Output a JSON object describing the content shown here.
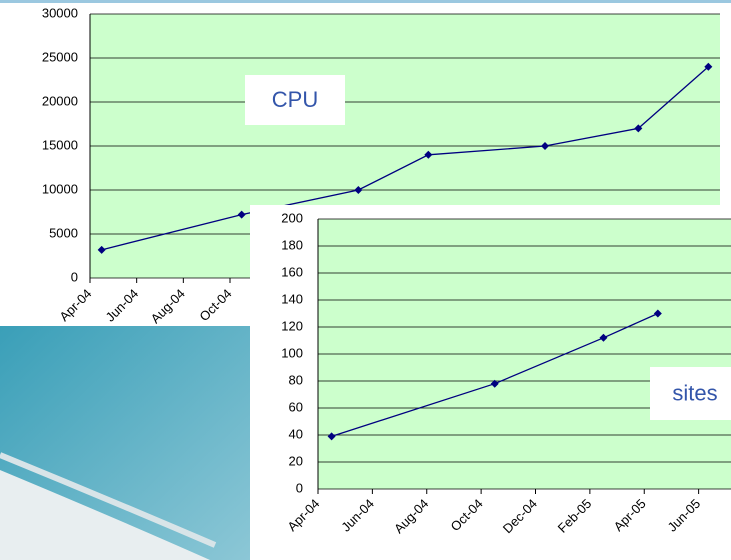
{
  "chart_data": [
    {
      "type": "line",
      "annotation": "CPU",
      "x": [
        "Apr-04",
        "Oct-04",
        "Mar-05",
        "Jun-05",
        "Nov-05",
        "Mar-06",
        "Jun-06"
      ],
      "values": [
        3200,
        7200,
        10000,
        14000,
        15000,
        17000,
        24000
      ],
      "color": "#000080",
      "xlim": [
        "Apr-04",
        "Jul-06"
      ],
      "xticks": [
        "Apr-04",
        "Jun-04",
        "Aug-04",
        "Oct-04"
      ],
      "ylim": [
        0,
        30000
      ],
      "yticks": [
        0,
        5000,
        10000,
        15000,
        20000,
        25000,
        30000
      ],
      "grid": true
    },
    {
      "type": "line",
      "annotation": "sites",
      "x": [
        "Apr-04",
        "Oct-04",
        "Feb-05",
        "Apr-05"
      ],
      "values": [
        39,
        78,
        112,
        130
      ],
      "color": "#000080",
      "xlim": [
        "Apr-04",
        "Aug-05"
      ],
      "xticks": [
        "Apr-04",
        "Jun-04",
        "Aug-04",
        "Oct-04",
        "Dec-04",
        "Feb-05",
        "Apr-05",
        "Jun-05"
      ],
      "ylim": [
        0,
        200
      ],
      "yticks": [
        0,
        20,
        40,
        60,
        80,
        100,
        120,
        140,
        160,
        180,
        200
      ],
      "grid": true
    }
  ]
}
